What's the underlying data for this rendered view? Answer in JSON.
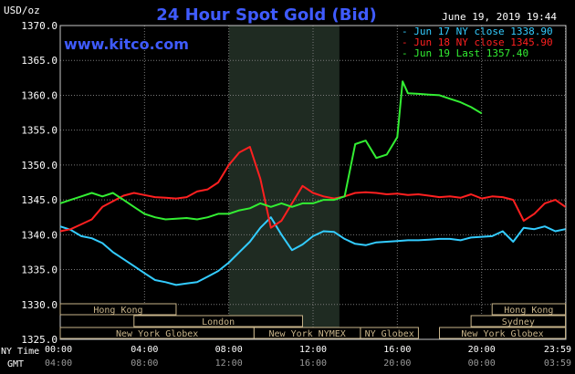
{
  "chart_data": {
    "type": "line",
    "title": "24 Hour Spot Gold (Bid)",
    "site": "www.kitco.com",
    "timestamp": "June 19, 2019 19:44",
    "ylabel": "USD/oz",
    "ylim": [
      1325,
      1370
    ],
    "yticks": [
      "1370.0",
      "1365.0",
      "1360.0",
      "1355.0",
      "1350.0",
      "1345.0",
      "1340.0",
      "1335.0",
      "1330.0",
      "1325.0"
    ],
    "ytick_values": [
      1370,
      1365,
      1360,
      1355,
      1350,
      1345,
      1340,
      1335,
      1330,
      1325
    ],
    "xlabel_ny": "NY Time",
    "xlabel_gmt": "GMT",
    "xticks_ny": [
      "00:00",
      "04:00",
      "08:00",
      "12:00",
      "16:00",
      "20:00",
      "23:59"
    ],
    "xticks_gmt": [
      "04:00",
      "08:00",
      "12:00",
      "16:00",
      "20:00",
      "00:00",
      "03:59"
    ],
    "xtick_hours": [
      0,
      4,
      8,
      12,
      16,
      20,
      23.98
    ],
    "xlim": [
      0,
      24
    ],
    "shaded_hours": [
      8,
      13.25
    ],
    "grid": true,
    "legend_placement": "top-right",
    "series": [
      {
        "name": "- Jun 17 NY close 1338.90",
        "color": "#33ccff",
        "x": [
          0,
          0.5,
          1,
          1.5,
          2,
          2.5,
          3,
          3.5,
          4,
          4.5,
          5,
          5.5,
          6,
          6.5,
          7,
          7.5,
          8,
          8.5,
          9,
          9.5,
          10,
          10.5,
          11,
          11.5,
          12,
          12.5,
          13,
          13.5,
          14,
          14.5,
          15,
          15.5,
          16,
          16.5,
          17,
          17.5,
          18,
          18.5,
          19,
          19.5,
          20,
          20.5,
          21,
          21.5,
          22,
          22.5,
          23,
          23.5,
          23.98
        ],
        "y": [
          1341.2,
          1340.7,
          1339.8,
          1339.5,
          1338.8,
          1337.5,
          1336.5,
          1335.5,
          1334.5,
          1333.5,
          1333.2,
          1332.8,
          1333,
          1333.2,
          1334,
          1334.8,
          1336,
          1337.5,
          1339,
          1341,
          1342.5,
          1340,
          1337.8,
          1338.6,
          1339.8,
          1340.5,
          1340.4,
          1339.4,
          1338.7,
          1338.5,
          1338.9,
          1339,
          1339.1,
          1339.2,
          1339.2,
          1339.3,
          1339.4,
          1339.4,
          1339.2,
          1339.6,
          1339.7,
          1339.8,
          1340.5,
          1339,
          1341,
          1340.8,
          1341.2,
          1340.5,
          1340.8
        ]
      },
      {
        "name": "- Jun 18 NY close 1345.90",
        "color": "#ff2020",
        "x": [
          0,
          0.5,
          1,
          1.5,
          2,
          2.5,
          3,
          3.5,
          4,
          4.5,
          5,
          5.5,
          6,
          6.5,
          7,
          7.5,
          8,
          8.5,
          9,
          9.5,
          10,
          10.5,
          11,
          11.5,
          12,
          12.5,
          13,
          13.5,
          14,
          14.5,
          15,
          15.5,
          16,
          16.5,
          17,
          17.5,
          18,
          18.5,
          19,
          19.5,
          20,
          20.5,
          21,
          21.5,
          22,
          22.5,
          23,
          23.5,
          23.98
        ],
        "y": [
          1340.5,
          1340.8,
          1341.5,
          1342.2,
          1344,
          1344.8,
          1345.6,
          1346,
          1345.7,
          1345.4,
          1345.3,
          1345.2,
          1345.4,
          1346.2,
          1346.5,
          1347.5,
          1350,
          1351.8,
          1352.6,
          1348,
          1341,
          1342,
          1344.5,
          1347,
          1346,
          1345.5,
          1345.2,
          1345.5,
          1346,
          1346.1,
          1346,
          1345.8,
          1345.9,
          1345.7,
          1345.8,
          1345.6,
          1345.4,
          1345.5,
          1345.3,
          1345.8,
          1345.2,
          1345.5,
          1345.4,
          1345,
          1342,
          1343,
          1344.5,
          1345,
          1344
        ]
      },
      {
        "name": "- Jun 19 Last 1357.40",
        "color": "#33ee33",
        "x": [
          0,
          0.5,
          1,
          1.5,
          2,
          2.5,
          3,
          3.5,
          4,
          4.5,
          5,
          5.5,
          6,
          6.5,
          7,
          7.5,
          8,
          8.5,
          9,
          9.5,
          10,
          10.5,
          11,
          11.5,
          12,
          12.5,
          13,
          13.5,
          14,
          14.5,
          15,
          15.5,
          16,
          16.25,
          16.5,
          17,
          17.5,
          18,
          18.5,
          19,
          19.5,
          20
        ],
        "y": [
          1344.5,
          1345,
          1345.5,
          1346,
          1345.5,
          1346,
          1345,
          1344,
          1343,
          1342.5,
          1342.2,
          1342.3,
          1342.4,
          1342.2,
          1342.5,
          1343,
          1343,
          1343.5,
          1343.8,
          1344.5,
          1344,
          1344.5,
          1344,
          1344.5,
          1344.5,
          1345,
          1345,
          1345.5,
          1353,
          1353.5,
          1351,
          1351.5,
          1354,
          1362,
          1360.3,
          1360.2,
          1360.1,
          1360,
          1359.5,
          1359,
          1358.3,
          1357.4
        ]
      }
    ],
    "sessions": [
      {
        "label": "Hong Kong",
        "start": 0,
        "end": 5.5,
        "row": 0
      },
      {
        "label": "London",
        "start": 3.5,
        "end": 11.5,
        "row": 1
      },
      {
        "label": "New York Globex",
        "start": 0,
        "end": 9.2,
        "row": 2
      },
      {
        "label": "New York NYMEX",
        "start": 9.2,
        "end": 14.25,
        "row": 2
      },
      {
        "label": "NY Globex",
        "start": 14.25,
        "end": 17,
        "row": 2
      },
      {
        "label": "Hong Kong",
        "start": 20.5,
        "end": 23.98,
        "row": 0
      },
      {
        "label": "Sydney",
        "start": 19.5,
        "end": 23.98,
        "row": 1
      },
      {
        "label": "New York Globex",
        "start": 18,
        "end": 23.98,
        "row": 2
      }
    ]
  }
}
